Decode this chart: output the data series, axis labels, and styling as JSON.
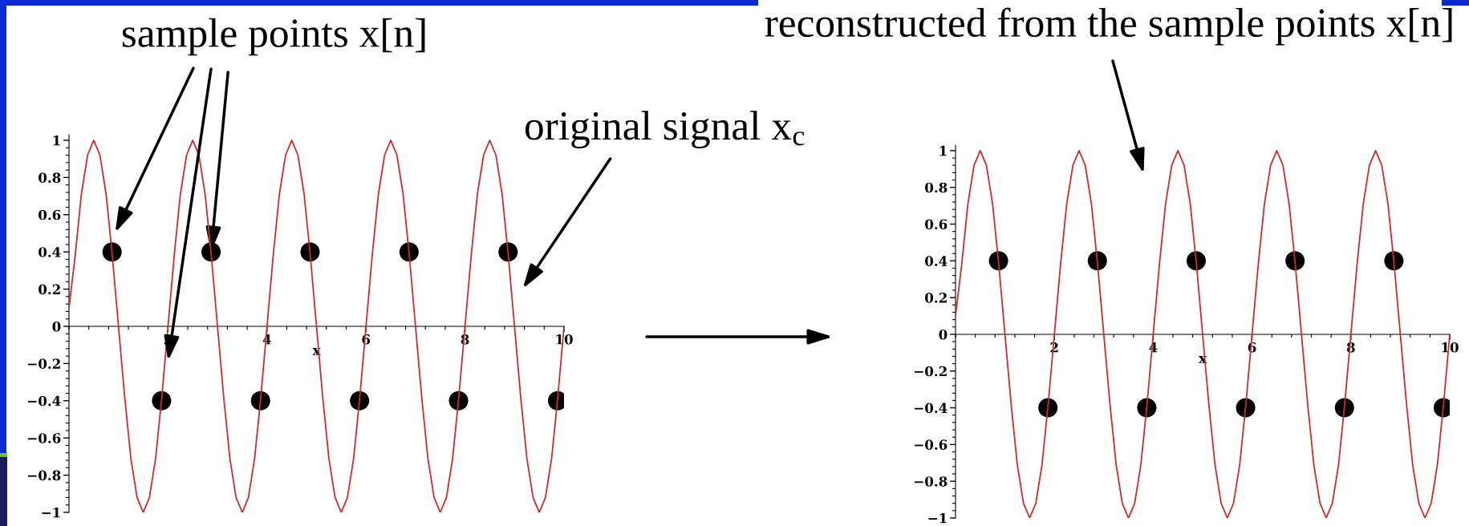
{
  "chart_data": [
    {
      "type": "line",
      "xlabel": "x",
      "xlim": [
        0,
        10
      ],
      "ylim": [
        -1,
        1.03
      ],
      "xticks": [
        2,
        4,
        6,
        8,
        10
      ],
      "yticks": [
        -1,
        -0.8,
        -0.6,
        -0.4,
        -0.2,
        0,
        0.2,
        0.4,
        0.6,
        0.8,
        1
      ],
      "annotations": [
        {
          "text": "sample points x[n]",
          "x": 2.87,
          "y": 0.4
        },
        "original signal x$_{c}$"
      ],
      "series": [
        {
          "color": "#d22b2b",
          "x": [
            0,
            0.125,
            0.25,
            0.375,
            0.5,
            0.625,
            0.75,
            0.875,
            1,
            1.125,
            1.25,
            1.375,
            1.5,
            1.625,
            1.75,
            1.875,
            2,
            2.125,
            2.25,
            2.375,
            2.5,
            2.625,
            2.75,
            2.875,
            3,
            3.125,
            3.25,
            3.375,
            3.5,
            3.625,
            3.75,
            3.875,
            4,
            4.125,
            4.25,
            4.375,
            4.5,
            4.625,
            4.75,
            4.875,
            5,
            5.125,
            5.25,
            5.375,
            5.5,
            5.625,
            5.75,
            5.875,
            6,
            6.125,
            6.25,
            6.375,
            6.5,
            6.625,
            6.75,
            6.875,
            7,
            7.125,
            7.25,
            7.375,
            7.5,
            7.625,
            7.75,
            7.875,
            8,
            8.125,
            8.25,
            8.375,
            8.5,
            8.625,
            8.75,
            8.875,
            9,
            9.125,
            9.25,
            9.375,
            9.5,
            9.625,
            9.75,
            9.875,
            10
          ],
          "values": [
            0.1,
            0.38,
            0.71,
            0.92,
            1,
            0.92,
            0.71,
            0.38,
            0,
            -0.38,
            -0.71,
            -0.92,
            -1,
            -0.92,
            -0.71,
            -0.38,
            0,
            0.38,
            0.71,
            0.92,
            1,
            0.92,
            0.71,
            0.38,
            0,
            -0.38,
            -0.71,
            -0.92,
            -1,
            -0.92,
            -0.71,
            -0.38,
            0,
            0.38,
            0.71,
            0.92,
            1,
            0.92,
            0.71,
            0.38,
            0,
            -0.38,
            -0.71,
            -0.92,
            -1,
            -0.92,
            -0.71,
            -0.38,
            0,
            0.38,
            0.71,
            0.92,
            1,
            0.92,
            0.71,
            0.38,
            0,
            -0.38,
            -0.71,
            -0.92,
            -1,
            -0.92,
            -0.71,
            -0.38,
            0,
            0.38,
            0.71,
            0.92,
            1,
            0.92,
            0.71,
            0.38,
            0,
            -0.38,
            -0.71,
            -0.92,
            -1,
            -0.92,
            -0.71,
            -0.38,
            0
          ]
        },
        {
          "type": "scatter",
          "color": "#000000",
          "marker": "circle",
          "x": [
            0.87,
            1.87,
            2.87,
            3.87,
            4.87,
            5.87,
            6.87,
            7.87,
            8.87,
            9.87
          ],
          "values": [
            0.4,
            -0.4,
            0.4,
            -0.4,
            0.4,
            -0.4,
            0.4,
            -0.4,
            0.4,
            -0.4
          ]
        }
      ]
    },
    {
      "type": "line",
      "xlabel": "x",
      "xlim": [
        0,
        10
      ],
      "ylim": [
        -1,
        1.03
      ],
      "xticks": [
        2,
        4,
        6,
        8,
        10
      ],
      "yticks": [
        -1,
        -0.8,
        -0.6,
        -0.4,
        -0.2,
        0,
        0.2,
        0.4,
        0.6,
        0.8,
        1
      ],
      "annotations": [
        "reconstructed from the sample points x[n]"
      ],
      "series": [
        {
          "color": "#d22b2b",
          "x": [
            0,
            0.125,
            0.25,
            0.375,
            0.5,
            0.625,
            0.75,
            0.875,
            1,
            1.125,
            1.25,
            1.375,
            1.5,
            1.625,
            1.75,
            1.875,
            2,
            2.125,
            2.25,
            2.375,
            2.5,
            2.625,
            2.75,
            2.875,
            3,
            3.125,
            3.25,
            3.375,
            3.5,
            3.625,
            3.75,
            3.875,
            4,
            4.125,
            4.25,
            4.375,
            4.5,
            4.625,
            4.75,
            4.875,
            5,
            5.125,
            5.25,
            5.375,
            5.5,
            5.625,
            5.75,
            5.875,
            6,
            6.125,
            6.25,
            6.375,
            6.5,
            6.625,
            6.75,
            6.875,
            7,
            7.125,
            7.25,
            7.375,
            7.5,
            7.625,
            7.75,
            7.875,
            8,
            8.125,
            8.25,
            8.375,
            8.5,
            8.625,
            8.75,
            8.875,
            9,
            9.125,
            9.25,
            9.375,
            9.5,
            9.625,
            9.75,
            9.875,
            10
          ],
          "values": [
            0.1,
            0.38,
            0.71,
            0.92,
            1,
            0.92,
            0.71,
            0.38,
            0,
            -0.38,
            -0.71,
            -0.92,
            -1,
            -0.92,
            -0.71,
            -0.38,
            0,
            0.38,
            0.71,
            0.92,
            1,
            0.92,
            0.71,
            0.38,
            0,
            -0.38,
            -0.71,
            -0.92,
            -1,
            -0.92,
            -0.71,
            -0.38,
            0,
            0.38,
            0.71,
            0.92,
            1,
            0.92,
            0.71,
            0.38,
            0,
            -0.38,
            -0.71,
            -0.92,
            -1,
            -0.92,
            -0.71,
            -0.38,
            0,
            0.38,
            0.71,
            0.92,
            1,
            0.92,
            0.71,
            0.38,
            0,
            -0.38,
            -0.71,
            -0.92,
            -1,
            -0.92,
            -0.71,
            -0.38,
            0,
            0.38,
            0.71,
            0.92,
            1,
            0.92,
            0.71,
            0.38,
            0,
            -0.38,
            -0.71,
            -0.92,
            -1,
            -0.92,
            -0.71,
            -0.38,
            0
          ]
        },
        {
          "type": "scatter",
          "color": "#000000",
          "marker": "circle",
          "x": [
            0.87,
            1.87,
            2.87,
            3.87,
            4.87,
            5.87,
            6.87,
            7.87,
            8.87,
            9.87
          ],
          "values": [
            0.4,
            -0.4,
            0.4,
            -0.4,
            0.4,
            -0.4,
            0.4,
            -0.4,
            0.4,
            -0.4
          ]
        }
      ]
    }
  ]
}
